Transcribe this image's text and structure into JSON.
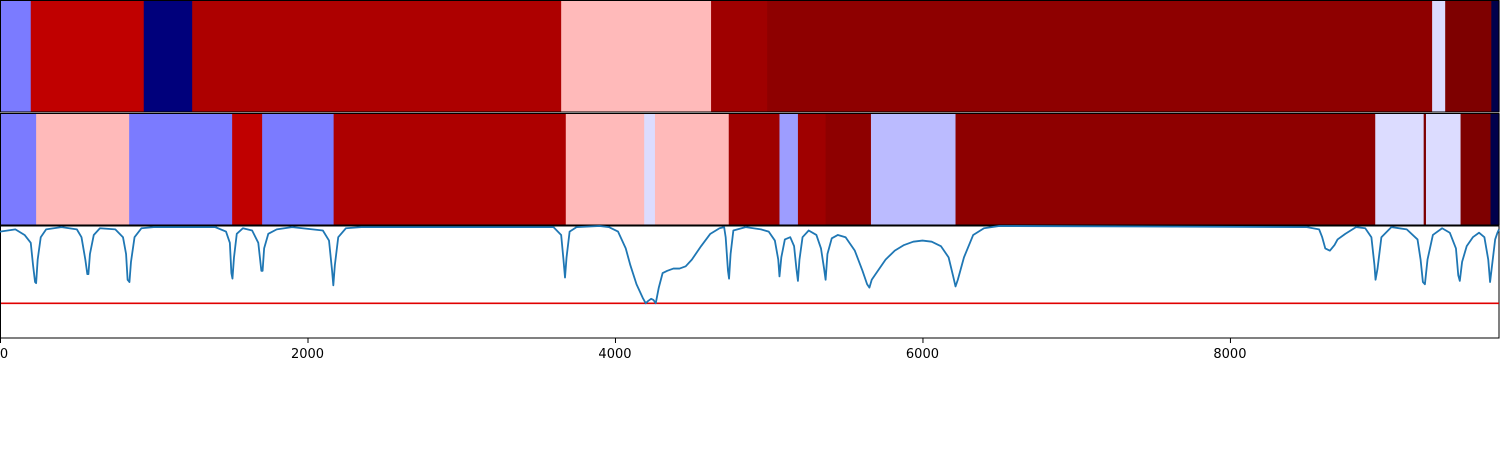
{
  "chart_data": {
    "type": "heatmap",
    "x_range": [
      0,
      9750
    ],
    "x_ticks": [
      {
        "value": 0,
        "label": "0"
      },
      {
        "value": 2000,
        "label": "2000"
      },
      {
        "value": 4000,
        "label": "4000"
      },
      {
        "value": 6000,
        "label": "6000"
      },
      {
        "value": 8000,
        "label": "8000"
      }
    ],
    "tracks": [
      {
        "segments": [
          {
            "start": 0,
            "end": 200,
            "color": "#7b7bff"
          },
          {
            "start": 200,
            "end": 935,
            "color": "#c00000"
          },
          {
            "start": 935,
            "end": 1250,
            "color": "#00007b"
          },
          {
            "start": 1250,
            "end": 3650,
            "color": "#ad0000"
          },
          {
            "start": 3650,
            "end": 4625,
            "color": "#ffbaba"
          },
          {
            "start": 4625,
            "end": 4990,
            "color": "#9f0000"
          },
          {
            "start": 4990,
            "end": 9315,
            "color": "#8e0000"
          },
          {
            "start": 9315,
            "end": 9400,
            "color": "#dcdcff"
          },
          {
            "start": 9400,
            "end": 9700,
            "color": "#7e0000"
          },
          {
            "start": 9700,
            "end": 9750,
            "color": "#00004b"
          }
        ]
      },
      {
        "segments": [
          {
            "start": 0,
            "end": 235,
            "color": "#7b7bff"
          },
          {
            "start": 235,
            "end": 840,
            "color": "#ffbaba"
          },
          {
            "start": 840,
            "end": 1510,
            "color": "#7b7bff"
          },
          {
            "start": 1510,
            "end": 1705,
            "color": "#c00000"
          },
          {
            "start": 1705,
            "end": 2170,
            "color": "#7b7bff"
          },
          {
            "start": 2170,
            "end": 3680,
            "color": "#ad0000"
          },
          {
            "start": 3680,
            "end": 4190,
            "color": "#ffbaba"
          },
          {
            "start": 4190,
            "end": 4260,
            "color": "#dcdcff"
          },
          {
            "start": 4260,
            "end": 4740,
            "color": "#ffbaba"
          },
          {
            "start": 4740,
            "end": 5070,
            "color": "#9f0000"
          },
          {
            "start": 5070,
            "end": 5190,
            "color": "#9d9dff"
          },
          {
            "start": 5190,
            "end": 5370,
            "color": "#9f0000"
          },
          {
            "start": 5370,
            "end": 5665,
            "color": "#8e0000"
          },
          {
            "start": 5665,
            "end": 6215,
            "color": "#bbbbff"
          },
          {
            "start": 6215,
            "end": 8945,
            "color": "#8e0000"
          },
          {
            "start": 8945,
            "end": 9260,
            "color": "#dcdcff"
          },
          {
            "start": 9260,
            "end": 9275,
            "color": "#7e0000"
          },
          {
            "start": 9275,
            "end": 9500,
            "color": "#dcdcff"
          },
          {
            "start": 9500,
            "end": 9695,
            "color": "#7e0000"
          },
          {
            "start": 9695,
            "end": 9750,
            "color": "#00004b"
          }
        ]
      }
    ],
    "signal": {
      "color": "#1f77b4",
      "y_range": [
        0,
        1
      ],
      "threshold": 0.31,
      "threshold_color": "#e00000",
      "points": [
        [
          0,
          0.95
        ],
        [
          100,
          0.97
        ],
        [
          160,
          0.92
        ],
        [
          200,
          0.85
        ],
        [
          215,
          0.65
        ],
        [
          228,
          0.5
        ],
        [
          235,
          0.49
        ],
        [
          245,
          0.7
        ],
        [
          265,
          0.9
        ],
        [
          300,
          0.97
        ],
        [
          400,
          0.99
        ],
        [
          500,
          0.97
        ],
        [
          530,
          0.9
        ],
        [
          555,
          0.7
        ],
        [
          568,
          0.57
        ],
        [
          575,
          0.57
        ],
        [
          585,
          0.75
        ],
        [
          610,
          0.92
        ],
        [
          650,
          0.98
        ],
        [
          750,
          0.97
        ],
        [
          800,
          0.9
        ],
        [
          820,
          0.75
        ],
        [
          830,
          0.52
        ],
        [
          842,
          0.5
        ],
        [
          852,
          0.68
        ],
        [
          875,
          0.9
        ],
        [
          920,
          0.98
        ],
        [
          1000,
          0.99
        ],
        [
          1400,
          0.99
        ],
        [
          1470,
          0.95
        ],
        [
          1495,
          0.85
        ],
        [
          1505,
          0.58
        ],
        [
          1512,
          0.53
        ],
        [
          1522,
          0.72
        ],
        [
          1540,
          0.93
        ],
        [
          1580,
          0.98
        ],
        [
          1640,
          0.96
        ],
        [
          1680,
          0.85
        ],
        [
          1700,
          0.6
        ],
        [
          1708,
          0.6
        ],
        [
          1718,
          0.8
        ],
        [
          1745,
          0.93
        ],
        [
          1800,
          0.97
        ],
        [
          1900,
          0.99
        ],
        [
          2100,
          0.96
        ],
        [
          2140,
          0.87
        ],
        [
          2160,
          0.6
        ],
        [
          2168,
          0.47
        ],
        [
          2178,
          0.65
        ],
        [
          2200,
          0.9
        ],
        [
          2250,
          0.98
        ],
        [
          2350,
          0.99
        ],
        [
          3600,
          0.99
        ],
        [
          3650,
          0.92
        ],
        [
          3665,
          0.7
        ],
        [
          3675,
          0.54
        ],
        [
          3685,
          0.72
        ],
        [
          3705,
          0.95
        ],
        [
          3750,
          0.99
        ],
        [
          3900,
          1.0
        ],
        [
          3960,
          0.99
        ],
        [
          4020,
          0.95
        ],
        [
          4070,
          0.8
        ],
        [
          4100,
          0.65
        ],
        [
          4140,
          0.48
        ],
        [
          4180,
          0.36
        ],
        [
          4200,
          0.31
        ],
        [
          4215,
          0.33
        ],
        [
          4235,
          0.35
        ],
        [
          4250,
          0.34
        ],
        [
          4265,
          0.31
        ],
        [
          4285,
          0.45
        ],
        [
          4310,
          0.58
        ],
        [
          4340,
          0.6
        ],
        [
          4380,
          0.62
        ],
        [
          4420,
          0.62
        ],
        [
          4460,
          0.64
        ],
        [
          4500,
          0.7
        ],
        [
          4560,
          0.82
        ],
        [
          4620,
          0.93
        ],
        [
          4680,
          0.98
        ],
        [
          4710,
          0.99
        ],
        [
          4720,
          0.9
        ],
        [
          4735,
          0.6
        ],
        [
          4742,
          0.53
        ],
        [
          4752,
          0.75
        ],
        [
          4770,
          0.96
        ],
        [
          4850,
          0.99
        ],
        [
          4950,
          0.97
        ],
        [
          5000,
          0.95
        ],
        [
          5040,
          0.87
        ],
        [
          5062,
          0.7
        ],
        [
          5070,
          0.55
        ],
        [
          5082,
          0.72
        ],
        [
          5105,
          0.88
        ],
        [
          5140,
          0.9
        ],
        [
          5165,
          0.82
        ],
        [
          5180,
          0.62
        ],
        [
          5190,
          0.51
        ],
        [
          5200,
          0.7
        ],
        [
          5220,
          0.9
        ],
        [
          5260,
          0.96
        ],
        [
          5310,
          0.92
        ],
        [
          5340,
          0.8
        ],
        [
          5360,
          0.62
        ],
        [
          5370,
          0.52
        ],
        [
          5382,
          0.75
        ],
        [
          5410,
          0.89
        ],
        [
          5450,
          0.92
        ],
        [
          5500,
          0.9
        ],
        [
          5560,
          0.78
        ],
        [
          5610,
          0.6
        ],
        [
          5640,
          0.48
        ],
        [
          5655,
          0.45
        ],
        [
          5670,
          0.52
        ],
        [
          5700,
          0.58
        ],
        [
          5760,
          0.7
        ],
        [
          5820,
          0.78
        ],
        [
          5880,
          0.83
        ],
        [
          5940,
          0.86
        ],
        [
          6000,
          0.87
        ],
        [
          6060,
          0.86
        ],
        [
          6120,
          0.82
        ],
        [
          6170,
          0.72
        ],
        [
          6200,
          0.55
        ],
        [
          6215,
          0.46
        ],
        [
          6230,
          0.52
        ],
        [
          6270,
          0.72
        ],
        [
          6330,
          0.92
        ],
        [
          6400,
          0.98
        ],
        [
          6500,
          1.0
        ],
        [
          8500,
          0.99
        ],
        [
          8580,
          0.97
        ],
        [
          8600,
          0.9
        ],
        [
          8620,
          0.8
        ],
        [
          8650,
          0.78
        ],
        [
          8680,
          0.83
        ],
        [
          8700,
          0.88
        ],
        [
          8750,
          0.93
        ],
        [
          8820,
          0.99
        ],
        [
          8880,
          0.98
        ],
        [
          8920,
          0.9
        ],
        [
          8940,
          0.65
        ],
        [
          8947,
          0.52
        ],
        [
          8960,
          0.62
        ],
        [
          8985,
          0.9
        ],
        [
          9050,
          0.99
        ],
        [
          9150,
          0.97
        ],
        [
          9220,
          0.88
        ],
        [
          9240,
          0.7
        ],
        [
          9255,
          0.5
        ],
        [
          9268,
          0.48
        ],
        [
          9285,
          0.7
        ],
        [
          9320,
          0.92
        ],
        [
          9380,
          0.98
        ],
        [
          9430,
          0.94
        ],
        [
          9470,
          0.8
        ],
        [
          9485,
          0.56
        ],
        [
          9495,
          0.51
        ],
        [
          9510,
          0.68
        ],
        [
          9540,
          0.82
        ],
        [
          9580,
          0.9
        ],
        [
          9620,
          0.94
        ],
        [
          9655,
          0.9
        ],
        [
          9680,
          0.7
        ],
        [
          9692,
          0.5
        ],
        [
          9705,
          0.65
        ],
        [
          9725,
          0.88
        ],
        [
          9740,
          0.94
        ],
        [
          9750,
          0.97
        ]
      ]
    }
  }
}
